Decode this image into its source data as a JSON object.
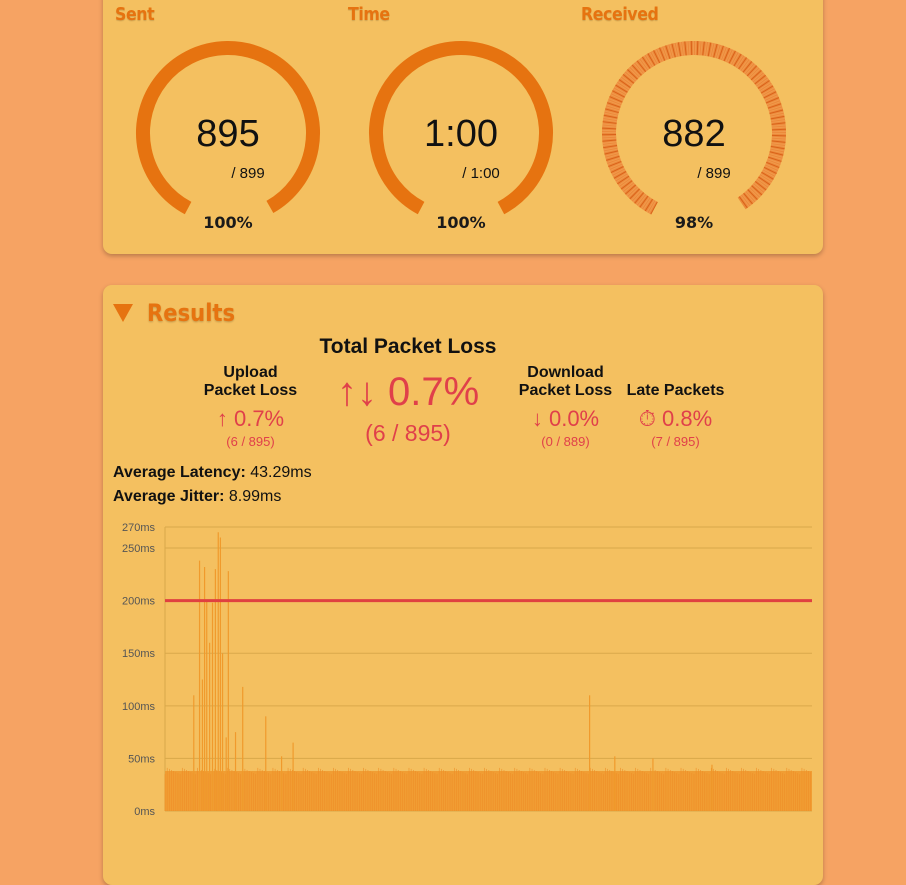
{
  "gauges": [
    {
      "title": "Sent",
      "value": "895",
      "sub": "/ 899",
      "pct": "100%",
      "fraction": 0.995,
      "style": "solid"
    },
    {
      "title": "Time",
      "value": "1:00",
      "sub": "/ 1:00",
      "pct": "100%",
      "fraction": 1.0,
      "style": "solid"
    },
    {
      "title": "Received",
      "value": "882",
      "sub": "/ 899",
      "pct": "98%",
      "fraction": 0.98,
      "style": "striped"
    }
  ],
  "results": {
    "title": "Results",
    "total": {
      "label": "Total Packet Loss",
      "value": "↑↓ 0.7%",
      "fraction": "(6 / 895)"
    },
    "upload": {
      "label_line1": "Upload",
      "label_line2": "Packet Loss",
      "value": "↑ 0.7%",
      "fraction": "(6 / 895)"
    },
    "download": {
      "label_line1": "Download",
      "label_line2": "Packet Loss",
      "value": "↓ 0.0%",
      "fraction": "(0 / 889)"
    },
    "late": {
      "label": "Late Packets",
      "value": "⏱ 0.8%",
      "fraction": "(7 / 895)"
    },
    "avg_latency_label": "Average Latency:",
    "avg_latency_value": "43.29ms",
    "avg_jitter_label": "Average Jitter:",
    "avg_jitter_value": "8.99ms"
  },
  "colors": {
    "accent": "#e67310",
    "loss": "#e0404a",
    "background": "#f6a363",
    "panel": "#f4c060",
    "bar": "#f0962c",
    "threshold": "#e04040"
  },
  "chart_data": {
    "type": "bar",
    "ytick_labels": [
      "0ms",
      "50ms",
      "100ms",
      "150ms",
      "200ms",
      "250ms",
      "270ms"
    ],
    "ytick_values": [
      0,
      50,
      100,
      150,
      200,
      250,
      270
    ],
    "ylim": [
      0,
      270
    ],
    "threshold": 200,
    "baseline_latency": 38,
    "sample_count": 899,
    "spikes": [
      {
        "index": 40,
        "value": 110
      },
      {
        "index": 48,
        "value": 238
      },
      {
        "index": 52,
        "value": 125
      },
      {
        "index": 55,
        "value": 232
      },
      {
        "index": 58,
        "value": 200
      },
      {
        "index": 62,
        "value": 160
      },
      {
        "index": 66,
        "value": 198
      },
      {
        "index": 70,
        "value": 230
      },
      {
        "index": 74,
        "value": 265
      },
      {
        "index": 77,
        "value": 260
      },
      {
        "index": 80,
        "value": 150
      },
      {
        "index": 85,
        "value": 70
      },
      {
        "index": 88,
        "value": 228
      },
      {
        "index": 98,
        "value": 75
      },
      {
        "index": 108,
        "value": 118
      },
      {
        "index": 140,
        "value": 90
      },
      {
        "index": 162,
        "value": 52
      },
      {
        "index": 178,
        "value": 65
      },
      {
        "index": 590,
        "value": 110
      },
      {
        "index": 625,
        "value": 52
      },
      {
        "index": 678,
        "value": 50
      },
      {
        "index": 760,
        "value": 44
      }
    ]
  }
}
